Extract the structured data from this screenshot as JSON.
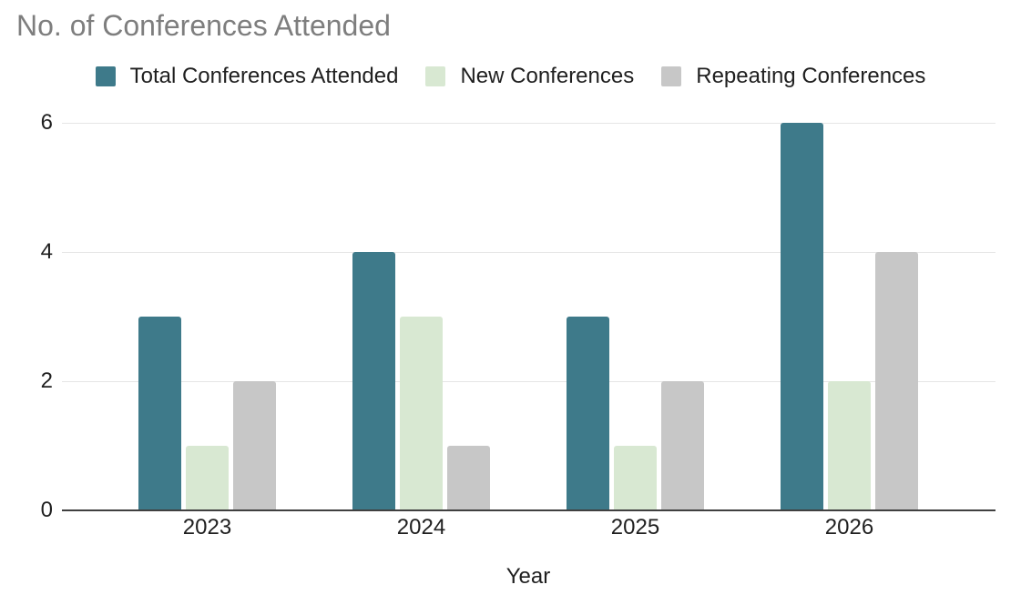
{
  "title": "No. of Conferences Attended",
  "legend": {
    "items": [
      {
        "label": "Total Conferences Attended",
        "color": "#3e7a8a"
      },
      {
        "label": "New Conferences",
        "color": "#d8e8d2"
      },
      {
        "label": "Repeating Conferences",
        "color": "#c7c7c7"
      }
    ]
  },
  "chart_data": {
    "type": "bar",
    "title": "No. of Conferences Attended",
    "categories": [
      "2023",
      "2024",
      "2025",
      "2026"
    ],
    "series": [
      {
        "name": "Total Conferences Attended",
        "color": "#3e7a8a",
        "values": [
          3,
          4,
          3,
          6
        ]
      },
      {
        "name": "New Conferences",
        "color": "#d8e8d2",
        "values": [
          1,
          3,
          1,
          2
        ]
      },
      {
        "name": "Repeating Conferences",
        "color": "#c7c7c7",
        "values": [
          2,
          1,
          2,
          4
        ]
      }
    ],
    "xlabel": "Year",
    "ylabel": "",
    "ylim": [
      0,
      6
    ],
    "yticks": [
      0,
      2,
      4,
      6
    ],
    "grid": true,
    "legend_position": "top"
  },
  "colors": {
    "title_text": "#7e7e7e",
    "axis_text": "#1f1f1f",
    "gridline": "#e6e6e6",
    "baseline": "#404040",
    "background": "#ffffff"
  }
}
